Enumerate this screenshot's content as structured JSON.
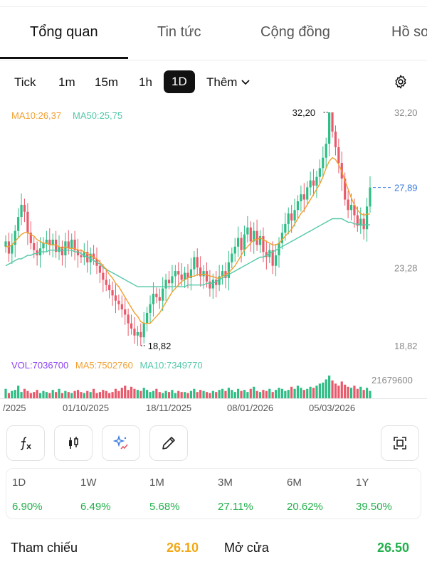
{
  "tabs": [
    {
      "label": "Tổng quan",
      "active": true
    },
    {
      "label": "Tin tức",
      "active": false
    },
    {
      "label": "Cộng đồng",
      "active": false
    },
    {
      "label": "Hồ sơ",
      "active": false
    }
  ],
  "intervals": [
    {
      "label": "Tick",
      "active": false
    },
    {
      "label": "1m",
      "active": false
    },
    {
      "label": "15m",
      "active": false
    },
    {
      "label": "1h",
      "active": false
    },
    {
      "label": "1D",
      "active": true
    }
  ],
  "more_label": "Thêm",
  "legend": {
    "ma10": "MA10:26,37",
    "ma50": "MA50:25,75"
  },
  "price_axis": {
    "top": "32,20",
    "last": "27,89",
    "mid": "23,28",
    "bottom": "18,82"
  },
  "annotations": {
    "high": "32,20",
    "low": "18,82"
  },
  "volume_legend": {
    "vol": "VOL:7036700",
    "ma5": "MA5:7502760",
    "ma10": "MA10:7349770"
  },
  "volume_max": "21679600",
  "date_labels": [
    "/2025",
    "01/10/2025",
    "18/11/2025",
    "08/01/2026",
    "05/03/2026"
  ],
  "tool_buttons": [
    "formula-icon",
    "candlestick-icon",
    "ai-sparkle-icon",
    "pencil-icon",
    "fullscreen-icon"
  ],
  "performance": [
    {
      "period": "1D",
      "value": "6.90%"
    },
    {
      "period": "1W",
      "value": "6.49%"
    },
    {
      "period": "1M",
      "value": "5.68%"
    },
    {
      "period": "3M",
      "value": "27.11%"
    },
    {
      "period": "6M",
      "value": "20.62%"
    },
    {
      "period": "1Y",
      "value": "39.50%"
    }
  ],
  "info": {
    "ref_label": "Tham chiếu",
    "ref_value": "26.10",
    "open_label": "Mở cửa",
    "open_value": "26.50"
  },
  "colors": {
    "up": "#2ebd85",
    "down": "#e85a6b",
    "ma10": "#f0a030",
    "ma50": "#54c8a8",
    "positive": "#21b04b",
    "reference": "#f2a814"
  },
  "chart_data": {
    "type": "candlestick",
    "ylim": [
      18.82,
      32.2
    ],
    "last_price": 27.89,
    "high": 32.2,
    "low": 18.82,
    "close_series": [
      24.8,
      24.1,
      24.6,
      25.4,
      26.2,
      26.9,
      26.5,
      25.3,
      24.7,
      24.3,
      24.0,
      24.4,
      24.7,
      24.9,
      24.6,
      24.9,
      24.2,
      24.5,
      24.0,
      24.8,
      24.4,
      24.9,
      24.3,
      24.0,
      23.9,
      24.2,
      23.6,
      24.1,
      23.8,
      23.4,
      23.0,
      22.6,
      22.3,
      22.0,
      21.7,
      21.4,
      21.2,
      20.9,
      20.6,
      20.1,
      19.8,
      19.4,
      19.6,
      19.3,
      20.1,
      20.7,
      21.2,
      21.8,
      21.6,
      21.4,
      22.1,
      22.6,
      22.4,
      22.8,
      23.1,
      22.9,
      22.6,
      23.0,
      22.7,
      23.2,
      23.9,
      23.3,
      22.8,
      23.1,
      22.5,
      22.1,
      22.6,
      22.3,
      22.8,
      23.1,
      22.7,
      23.6,
      24.1,
      24.5,
      25.0,
      24.3,
      25.2,
      25.6,
      24.8,
      25.4,
      24.6,
      25.1,
      24.2,
      23.9,
      24.3,
      23.4,
      24.0,
      24.7,
      25.3,
      25.8,
      26.4,
      26.0,
      26.6,
      27.1,
      27.5,
      27.2,
      27.9,
      28.3,
      28.0,
      28.5,
      29.0,
      29.6,
      30.4,
      32.2,
      31.1,
      30.2,
      29.3,
      28.4,
      27.2,
      26.6,
      26.9,
      26.3,
      25.7,
      26.1,
      25.5,
      26.8,
      27.89
    ],
    "ma10": [
      24.5,
      24.5,
      24.6,
      24.8,
      25.0,
      25.2,
      25.3,
      25.3,
      25.2,
      25.1,
      24.9,
      24.8,
      24.7,
      24.7,
      24.6,
      24.6,
      24.6,
      24.5,
      24.4,
      24.5,
      24.4,
      24.4,
      24.4,
      24.3,
      24.3,
      24.2,
      24.1,
      24.0,
      23.9,
      23.8,
      23.6,
      23.4,
      23.2,
      22.9,
      22.7,
      22.4,
      22.2,
      21.9,
      21.6,
      21.3,
      21.0,
      20.7,
      20.5,
      20.2,
      20.1,
      20.1,
      20.1,
      20.3,
      20.5,
      20.7,
      21.0,
      21.3,
      21.6,
      21.9,
      22.1,
      22.3,
      22.5,
      22.6,
      22.7,
      22.8,
      22.8,
      22.9,
      22.9,
      22.9,
      22.9,
      22.8,
      22.8,
      22.7,
      22.7,
      22.8,
      22.9,
      23.0,
      23.2,
      23.4,
      23.7,
      24.0,
      24.3,
      24.5,
      24.7,
      24.9,
      24.9,
      25.0,
      24.9,
      24.8,
      24.7,
      24.6,
      24.6,
      24.7,
      24.9,
      25.1,
      25.3,
      25.5,
      25.8,
      26.1,
      26.4,
      26.6,
      26.9,
      27.2,
      27.5,
      27.8,
      28.1,
      28.5,
      29.0,
      29.4,
      29.6,
      29.5,
      29.2,
      28.8,
      28.3,
      27.8,
      27.3,
      26.9,
      26.6,
      26.4,
      26.3,
      26.37,
      26.37
    ],
    "ma50": [
      23.4,
      23.5,
      23.6,
      23.7,
      23.8,
      23.8,
      23.9,
      24.0,
      24.0,
      24.1,
      24.1,
      24.2,
      24.2,
      24.2,
      24.3,
      24.3,
      24.3,
      24.3,
      24.3,
      24.3,
      24.3,
      24.3,
      24.2,
      24.2,
      24.1,
      24.0,
      23.9,
      23.8,
      23.7,
      23.6,
      23.5,
      23.3,
      23.2,
      23.1,
      23.0,
      22.9,
      22.8,
      22.7,
      22.6,
      22.5,
      22.4,
      22.3,
      22.2,
      22.2,
      22.2,
      22.2,
      22.2,
      22.2,
      22.2,
      22.2,
      22.2,
      22.2,
      22.2,
      22.2,
      22.2,
      22.2,
      22.2,
      22.2,
      22.3,
      22.3,
      22.3,
      22.3,
      22.3,
      22.3,
      22.4,
      22.4,
      22.4,
      22.5,
      22.6,
      22.7,
      22.8,
      22.9,
      23.0,
      23.1,
      23.2,
      23.3,
      23.4,
      23.5,
      23.6,
      23.7,
      23.8,
      23.9,
      23.9,
      24.0,
      24.1,
      24.2,
      24.3,
      24.4,
      24.5,
      24.6,
      24.7,
      24.8,
      24.9,
      25.0,
      25.1,
      25.2,
      25.3,
      25.4,
      25.5,
      25.6,
      25.7,
      25.8,
      25.9,
      26.0,
      26.1,
      26.1,
      26.1,
      26.1,
      26.0,
      25.9,
      25.9,
      25.8,
      25.8,
      25.75,
      25.75,
      25.75,
      25.75
    ],
    "volume_series": [
      9,
      5,
      7,
      8,
      12,
      6,
      9,
      7,
      5,
      6,
      8,
      5,
      7,
      6,
      5,
      8,
      6,
      9,
      5,
      7,
      6,
      5,
      7,
      8,
      6,
      5,
      7,
      6,
      9,
      5,
      6,
      8,
      7,
      5,
      6,
      9,
      7,
      10,
      12,
      8,
      11,
      9,
      8,
      7,
      10,
      8,
      6,
      7,
      9,
      6,
      5,
      7,
      6,
      8,
      5,
      7,
      6,
      6,
      5,
      7,
      9,
      6,
      8,
      7,
      6,
      5,
      7,
      6,
      8,
      9,
      7,
      10,
      8,
      6,
      9,
      7,
      8,
      6,
      9,
      11,
      7,
      6,
      8,
      7,
      9,
      6,
      8,
      10,
      9,
      7,
      8,
      11,
      9,
      12,
      10,
      8,
      9,
      11,
      10,
      12,
      14,
      15,
      18,
      21.68,
      17,
      14,
      12,
      16,
      13,
      11,
      10,
      12,
      9,
      11,
      8,
      10,
      7.04
    ],
    "volume_ylim": [
      0,
      21.68
    ]
  }
}
